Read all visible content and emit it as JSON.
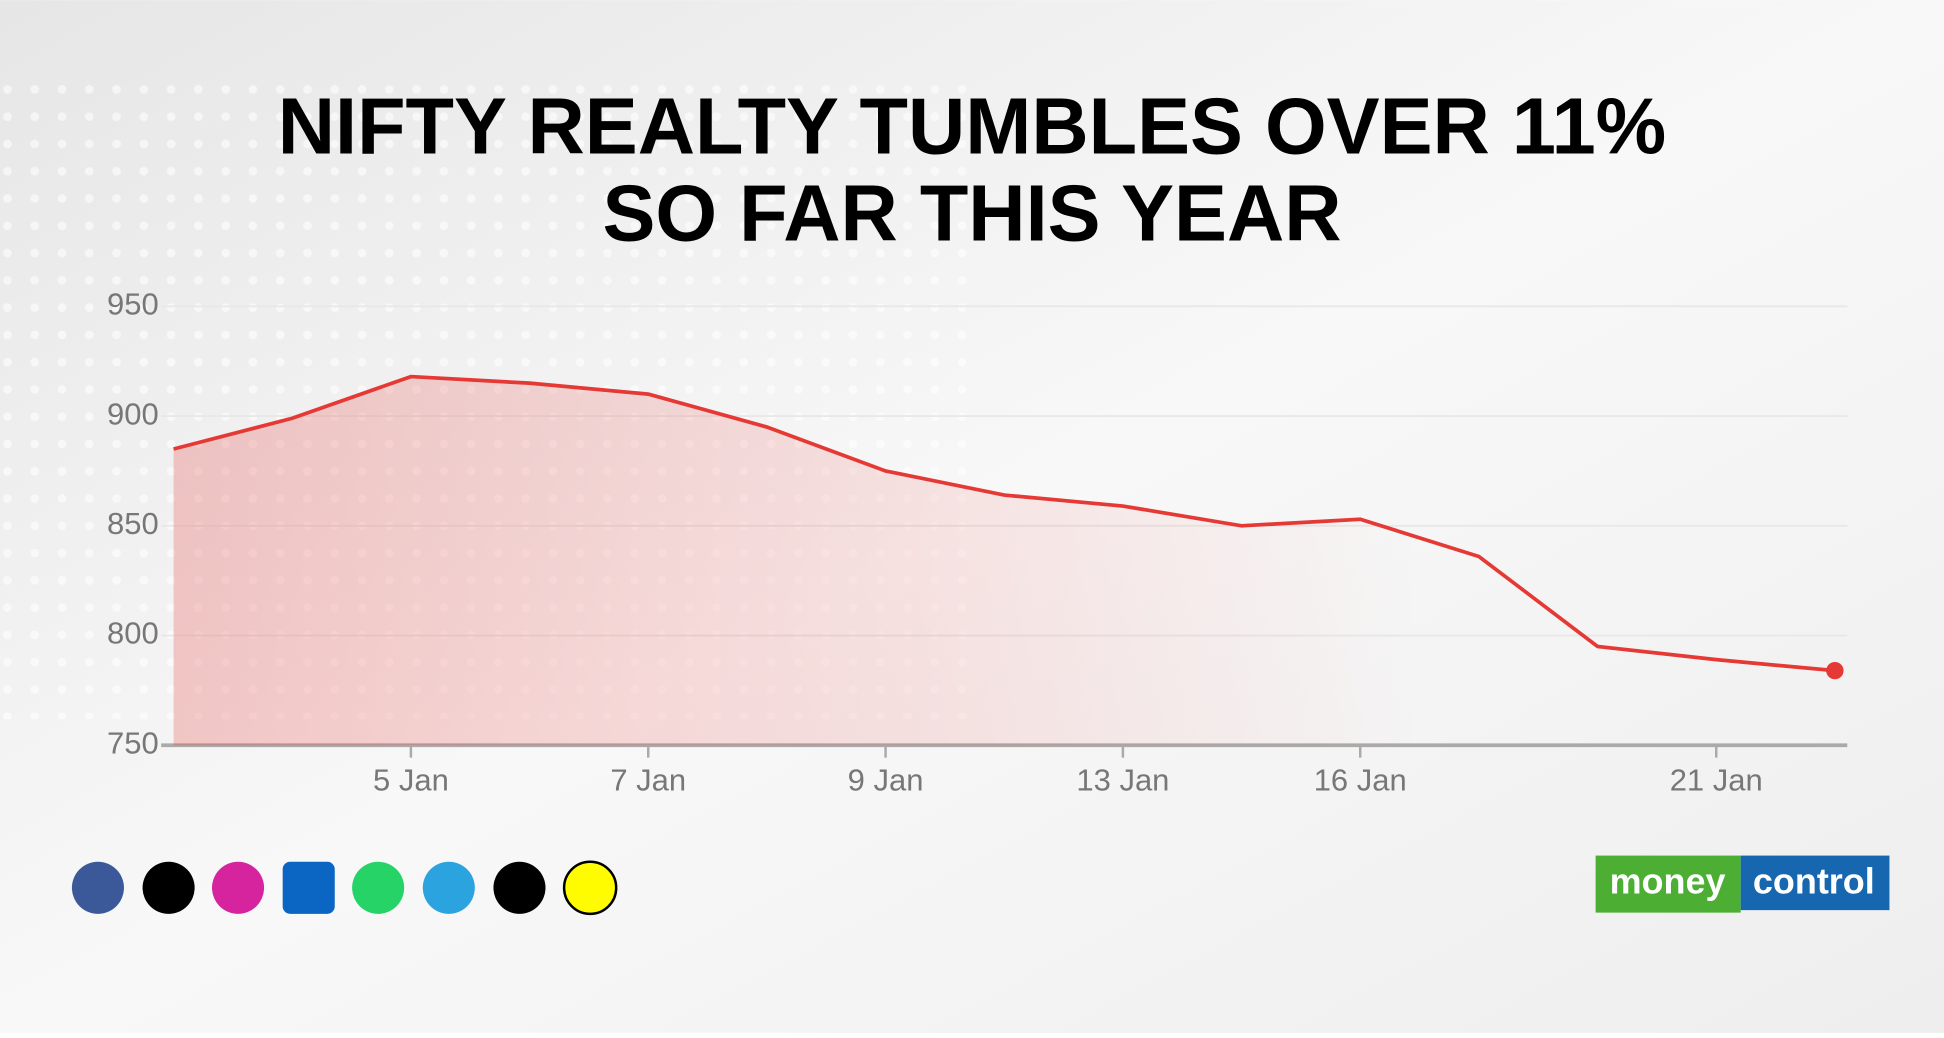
{
  "chart_data": {
    "type": "line",
    "title": [
      "NIFTY REALTY TUMBLES OVER 11%",
      "SO FAR THIS YEAR"
    ],
    "categories": [
      null,
      null,
      "5 Jan",
      null,
      "7 Jan",
      null,
      "9 Jan",
      null,
      "13 Jan",
      null,
      "16 Jan",
      null,
      null,
      "21 Jan",
      null
    ],
    "series": [
      {
        "color": "#e53935",
        "values": [
          885,
          899,
          918,
          915,
          910,
          895,
          875,
          864,
          859,
          850,
          853,
          836,
          795,
          789,
          784
        ]
      }
    ],
    "ylim": [
      750,
      950
    ],
    "yticks": [
      750,
      800,
      850,
      900,
      950
    ],
    "grid": true,
    "brand": [
      "money",
      "control"
    ]
  }
}
